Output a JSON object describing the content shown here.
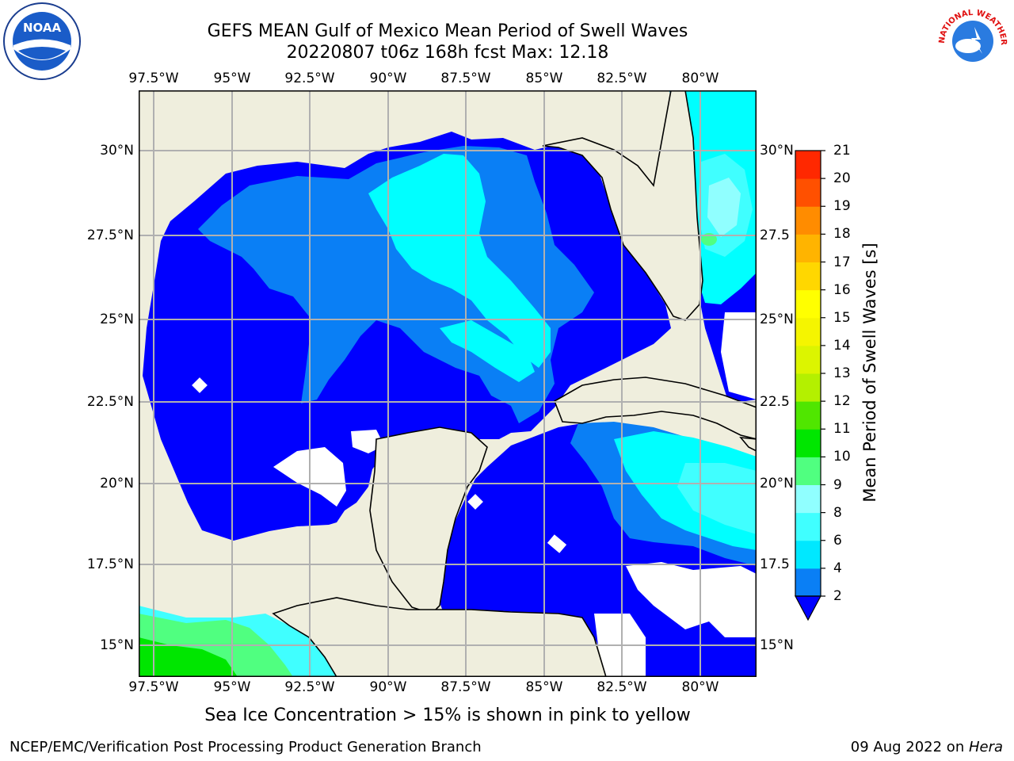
{
  "title": {
    "line1": "GEFS MEAN Gulf of Mexico Mean Period of Swell Waves",
    "line2": "20220807 t06z 168h fcst   Max: 12.18"
  },
  "map": {
    "lon_labels": [
      "97.5°W",
      "95°W",
      "92.5°W",
      "90°W",
      "87.5°W",
      "85°W",
      "82.5°W",
      "80°W"
    ],
    "lat_labels": [
      "30°N",
      "27.5°N",
      "25°N",
      "22.5°N",
      "20°N",
      "17.5°N",
      "15°N"
    ],
    "lat_labels_right": [
      "30°N",
      "27.5",
      "25°N",
      "22.5",
      "20°N",
      "17.5",
      "15°N"
    ],
    "land_color": "#efeedd",
    "grid_color": "#b0b0b0"
  },
  "colorbar": {
    "title": "Mean Period of Swell Waves [s]",
    "levels": [
      "2",
      "4",
      "6",
      "8",
      "9",
      "10",
      "11",
      "12",
      "13",
      "14",
      "15",
      "16",
      "17",
      "18",
      "19",
      "20",
      "21"
    ],
    "colors": [
      "#0a7ff5",
      "#00e8ff",
      "#40ffff",
      "#90ffff",
      "#50ff80",
      "#00e600",
      "#50e600",
      "#b4f000",
      "#dcf500",
      "#f5f500",
      "#ffff00",
      "#ffd700",
      "#ffb400",
      "#ff8c00",
      "#ff5000",
      "#ff2800",
      "#ff0000"
    ],
    "below_color": "#0000ff"
  },
  "note": "Sea Ice Concentration > 15% is shown in pink to yellow",
  "footer": {
    "left": "NCEP/EMC/Verification Post Processing Product Generation Branch",
    "date": "09 Aug 2022 on ",
    "machine": "Hera"
  },
  "logos": {
    "left_text": "NOAA",
    "right_arc_text": "NATIONAL WEATHER SERVICE"
  }
}
